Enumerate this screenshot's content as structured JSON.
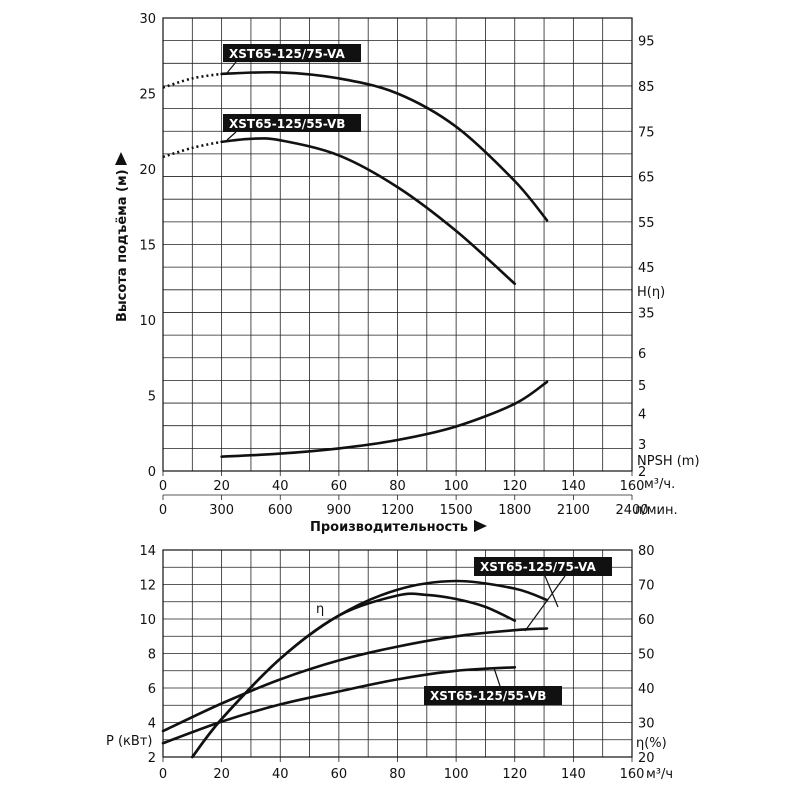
{
  "chart_data": [
    {
      "type": "line",
      "name": "head-npsh",
      "xlabel": "Производительность",
      "ylabel": "Высота подъёма (м)",
      "x_unit": "м³/ч.",
      "x2_unit": "л/мин.",
      "right_label_top": "H(η)",
      "right_label_bottom": "NPSH (m)",
      "xlim": [
        0,
        160
      ],
      "ylim": [
        0,
        30
      ],
      "x_ticks": [
        0,
        20,
        40,
        60,
        80,
        100,
        120,
        140,
        160
      ],
      "x2_ticks": [
        0,
        300,
        600,
        900,
        1200,
        1500,
        1800,
        2100,
        2400
      ],
      "y_ticks": [
        0,
        5,
        10,
        15,
        20,
        25,
        30
      ],
      "right_ticks_top": [
        {
          "label": "95",
          "y": 28.5
        },
        {
          "label": "85",
          "y": 25.5
        },
        {
          "label": "75",
          "y": 22.5
        },
        {
          "label": "65",
          "y": 19.5
        },
        {
          "label": "55",
          "y": 16.5
        },
        {
          "label": "45",
          "y": 13.5
        }
      ],
      "right_ticks_bottom": [
        {
          "label": "35",
          "y": 10.5
        },
        {
          "label": "6",
          "y": 7.8
        },
        {
          "label": "5",
          "y": 5.7
        },
        {
          "label": "4",
          "y": 3.8
        },
        {
          "label": "3",
          "y": 1.8
        },
        {
          "label": "2",
          "y": 0.0
        }
      ],
      "series": [
        {
          "name": "XST65-125/75-VA",
          "x": [
            20,
            40,
            60,
            80,
            100,
            120,
            131
          ],
          "y": [
            26.3,
            26.4,
            26.0,
            25.0,
            22.8,
            19.2,
            16.6
          ],
          "extrapolated": {
            "x": [
              0,
              10,
              20
            ],
            "y": [
              25.4,
              26.0,
              26.3
            ]
          }
        },
        {
          "name": "XST65-125/55-VB",
          "x": [
            20,
            30,
            40,
            60,
            80,
            100,
            120
          ],
          "y": [
            21.8,
            22.0,
            21.9,
            20.9,
            18.8,
            15.9,
            12.4
          ],
          "extrapolated": {
            "x": [
              0,
              10,
              20
            ],
            "y": [
              20.8,
              21.4,
              21.8
            ]
          }
        },
        {
          "name": "NPSH",
          "x": [
            20,
            40,
            60,
            80,
            100,
            120,
            131
          ],
          "y": [
            0.95,
            1.15,
            1.5,
            2.05,
            2.95,
            4.45,
            5.9
          ]
        }
      ]
    },
    {
      "type": "line",
      "name": "power-efficiency",
      "ylabel_left": "P (кВт)",
      "ylabel_right": "η(%)",
      "x_unit": "м³/ч",
      "xlim": [
        0,
        160
      ],
      "ylim": [
        2,
        14
      ],
      "y2lim": [
        20,
        80
      ],
      "x_ticks": [
        0,
        20,
        40,
        60,
        80,
        100,
        120,
        140,
        160
      ],
      "y_ticks": [
        2,
        4,
        6,
        8,
        10,
        12,
        14
      ],
      "y2_ticks": [
        20,
        30,
        40,
        50,
        60,
        70,
        80
      ],
      "eta_label": "η",
      "series": [
        {
          "name": "XST65-125/75-VA",
          "x": [
            0,
            20,
            40,
            60,
            80,
            100,
            120,
            131
          ],
          "y": [
            3.5,
            5.1,
            6.5,
            7.6,
            8.4,
            9.0,
            9.35,
            9.45
          ]
        },
        {
          "name": "XST65-125/55-VB",
          "x": [
            0,
            20,
            40,
            60,
            80,
            100,
            120
          ],
          "y": [
            2.8,
            4.05,
            5.05,
            5.8,
            6.5,
            7.0,
            7.2
          ]
        },
        {
          "name": "XST65-125/75-VA",
          "x": [
            10,
            20,
            40,
            60,
            80,
            100,
            120,
            131
          ],
          "y2": [
            20.0,
            31.0,
            48.5,
            61.0,
            68.5,
            71.0,
            68.8,
            65.5
          ]
        },
        {
          "name": "XST65-125/55-VB",
          "x": [
            10,
            20,
            40,
            60,
            80,
            90,
            100,
            110,
            120
          ],
          "y2": [
            20.0,
            31.0,
            48.5,
            61.0,
            66.8,
            67.0,
            65.8,
            63.5,
            59.5
          ]
        }
      ]
    }
  ]
}
